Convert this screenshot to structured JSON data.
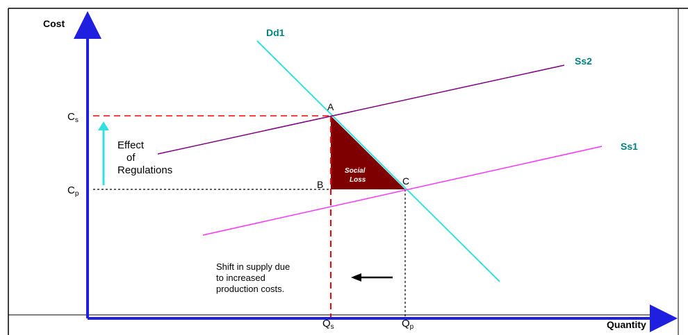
{
  "axes": {
    "y_label": "Cost",
    "x_label": "Quantity"
  },
  "curves": {
    "demand": "Dd1",
    "supply_new": "Ss2",
    "supply_old": "Ss1"
  },
  "points": {
    "a": "A",
    "b": "B",
    "c": "C"
  },
  "ticks": {
    "cs_main": "C",
    "cs_sub": "s",
    "cp_main": "C",
    "cp_sub": "p",
    "qs_main": "Q",
    "qs_sub": "s",
    "qp_main": "Q",
    "qp_sub": "p"
  },
  "annotations": {
    "effect_line1": "Effect",
    "effect_line2": "of",
    "effect_line3": "Regulations",
    "loss_line1": "Social",
    "loss_line2": "Loss",
    "shift_line1": "Shift in supply due",
    "shift_line2": "to increased",
    "shift_line3": "production costs."
  },
  "colors": {
    "axis": "#1f1fe0",
    "demand": "#33e0e0",
    "supply_new": "#800080",
    "supply_old": "#ff33ff",
    "loss_fill": "#7f0000",
    "dashed_red": "#ff0000",
    "label_teal": "#008080",
    "effect_arrow": "#33e0e0"
  }
}
